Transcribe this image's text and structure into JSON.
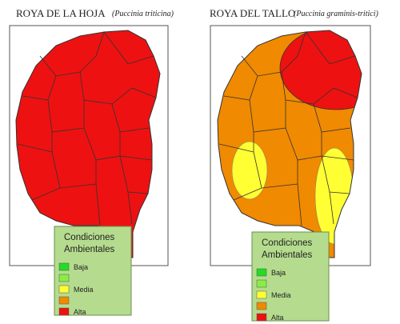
{
  "panels": [
    {
      "title": "ROYA DE LA HOJA",
      "subtitle": "(Puccinia triticina)",
      "legend": {
        "title_lines": [
          "Condiciones",
          "Ambientales"
        ],
        "items": [
          {
            "color": "#22dd22",
            "label": "Baja"
          },
          {
            "color": "#88ee44"
          },
          {
            "color": "#ffff33",
            "label": "Media"
          },
          {
            "color": "#f08a00"
          },
          {
            "color": "#ee1111",
            "label": "Alta"
          }
        ]
      }
    },
    {
      "title": "ROYA DEL TALLO",
      "subtitle": "(Puccinia graminis-tritici)",
      "legend": {
        "title_lines": [
          "Condiciones",
          "Ambientales"
        ],
        "items": [
          {
            "color": "#22dd22",
            "label": "Baja"
          },
          {
            "color": "#88ee44"
          },
          {
            "color": "#ffff33",
            "label": "Media"
          },
          {
            "color": "#f08a00"
          },
          {
            "color": "#ee1111",
            "label": "Alta"
          }
        ]
      }
    }
  ]
}
